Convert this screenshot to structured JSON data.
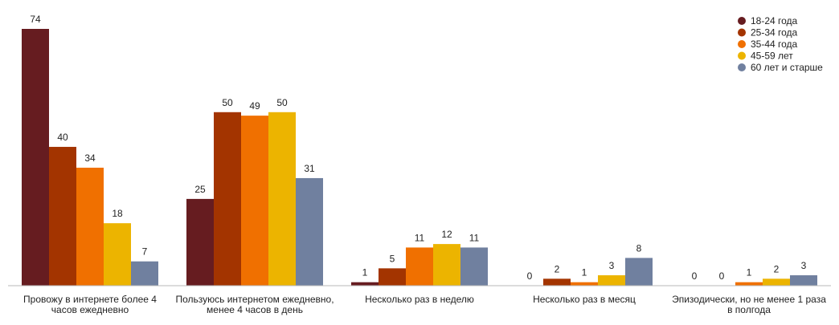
{
  "chart_data": {
    "type": "bar",
    "title": "",
    "xlabel": "",
    "ylabel": "",
    "ylim": [
      0,
      74
    ],
    "grid": false,
    "legend_position": "top-right",
    "categories": [
      [
        "Провожу в интернете более 4",
        "часов ежедневно"
      ],
      [
        "Пользуюсь интернетом ежедневно,",
        "менее 4 часов в день"
      ],
      [
        "Несколько раз в неделю"
      ],
      [
        "Несколько раз в месяц"
      ],
      [
        "Эпизодически, но не менее 1 раза",
        "в полгода"
      ]
    ],
    "series": [
      {
        "name": "18-24 года",
        "color": "#661c20",
        "values": [
          74,
          25,
          1,
          0,
          0
        ]
      },
      {
        "name": "25-34 года",
        "color": "#a33400",
        "values": [
          40,
          50,
          5,
          2,
          0
        ]
      },
      {
        "name": "35-44 года",
        "color": "#f07000",
        "values": [
          34,
          49,
          11,
          1,
          1
        ]
      },
      {
        "name": "45-59 лет",
        "color": "#ecb400",
        "values": [
          18,
          50,
          12,
          3,
          2
        ]
      },
      {
        "name": "60 лет и старше",
        "color": "#70809f",
        "values": [
          7,
          31,
          11,
          8,
          3
        ]
      }
    ]
  }
}
